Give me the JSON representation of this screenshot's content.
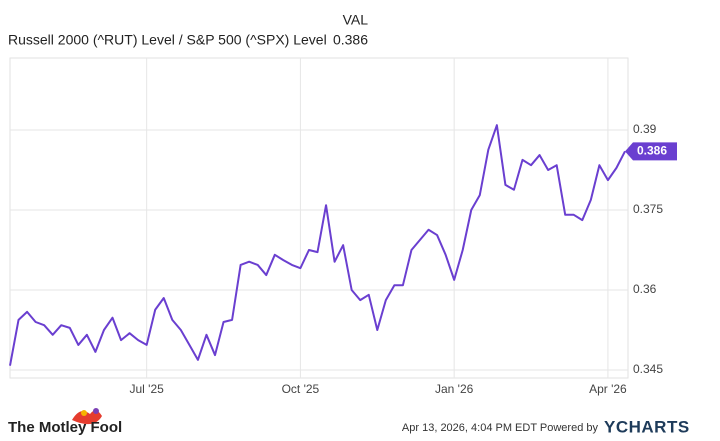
{
  "chart_data": {
    "type": "line",
    "value_column_header": "VAL",
    "categories": [
      null,
      null,
      null,
      null,
      null,
      null,
      null,
      null,
      null,
      null,
      null,
      null,
      null,
      null,
      null,
      null,
      "Jul '25",
      null,
      null,
      null,
      null,
      null,
      null,
      null,
      null,
      null,
      null,
      null,
      null,
      null,
      null,
      null,
      null,
      null,
      "Oct '25",
      null,
      null,
      null,
      null,
      null,
      null,
      null,
      null,
      null,
      null,
      null,
      null,
      null,
      null,
      null,
      null,
      null,
      "Jan '26",
      null,
      null,
      null,
      null,
      null,
      null,
      null,
      null,
      null,
      null,
      null,
      null,
      null,
      null,
      null,
      null,
      null,
      "Apr '26",
      null,
      null
    ],
    "series": [
      {
        "name": "Russell 2000 (^RUT) Level / S&P 500 (^SPX) Level",
        "color": "#6a3fd0",
        "values": [
          0.3458,
          0.3544,
          0.3559,
          0.354,
          0.3534,
          0.3516,
          0.3534,
          0.3529,
          0.3497,
          0.3516,
          0.3484,
          0.3525,
          0.3548,
          0.3506,
          0.3519,
          0.3506,
          0.3497,
          0.3563,
          0.3585,
          0.3544,
          0.3525,
          0.3497,
          0.3469,
          0.3516,
          0.3478,
          0.354,
          0.3544,
          0.3647,
          0.3653,
          0.3647,
          0.3628,
          0.3666,
          0.3656,
          0.3647,
          0.3641,
          0.3675,
          0.3671,
          0.3759,
          0.3653,
          0.3684,
          0.36,
          0.3581,
          0.3591,
          0.3525,
          0.3581,
          0.3609,
          0.3609,
          0.3675,
          0.3694,
          0.3713,
          0.3703,
          0.3666,
          0.3619,
          0.3675,
          0.375,
          0.3778,
          0.3863,
          0.3909,
          0.3797,
          0.3788,
          0.3844,
          0.3834,
          0.3853,
          0.3825,
          0.3834,
          0.3741,
          0.3741,
          0.3731,
          0.3769,
          0.3834,
          0.3806,
          0.3829,
          0.386
        ]
      }
    ],
    "ylim": [
      0.3435,
      0.4035
    ],
    "yticks": [
      0.345,
      0.36,
      0.375,
      0.39
    ],
    "grid": true
  },
  "footer": {
    "logo": "The Motley Fool",
    "timestamp": "Apr 13, 2026, 4:04 PM EDT Powered by",
    "brand": "YCHARTS"
  }
}
